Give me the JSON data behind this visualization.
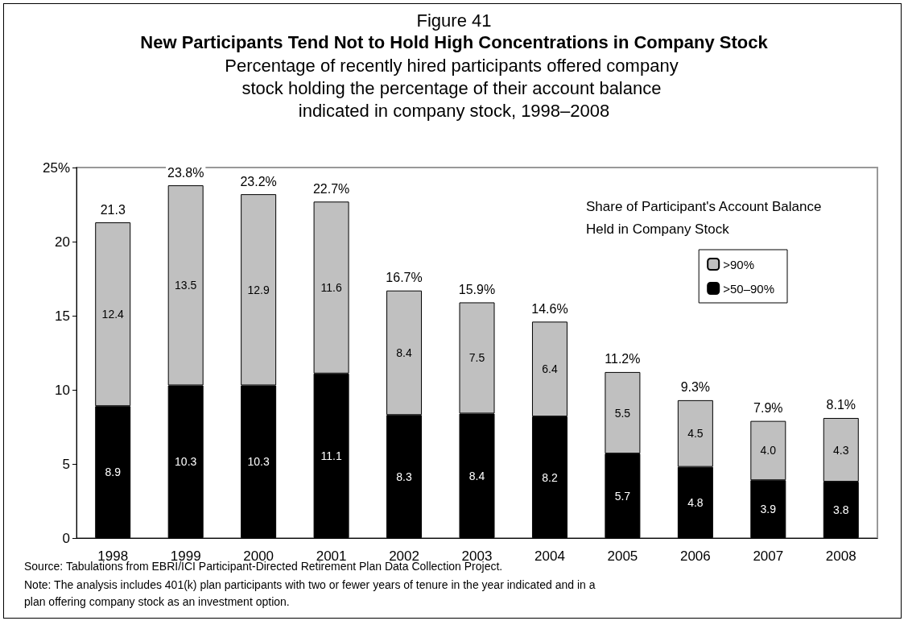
{
  "chart_data": {
    "type": "bar",
    "stacked": true,
    "title": "New Participants Tend Not to Hold High Concentrations in Company Stock",
    "subtitle": "Figure 41",
    "annotations": [
      "Percentage of recently hired participants offered company stock holding the percentage of their account balance indicated in company stock, 1998–2008",
      "Source: Tabulations from EBRI/ICI Participant-Directed Retirement Plan Data Collection Project.",
      "Note: The analysis includes 401(k) plan participants with two or fewer years of tenure in the year indicated and in a plan offering company stock as an investment option."
    ],
    "categories": [
      "1998",
      "1999",
      "2000",
      "2001",
      "2002",
      "2003",
      "2004",
      "2005",
      "2006",
      "2007",
      "2008"
    ],
    "series": [
      {
        "name": ">50–90%",
        "color": "#000000",
        "values": [
          8.9,
          10.3,
          10.3,
          11.1,
          8.3,
          8.4,
          8.2,
          5.7,
          4.8,
          3.9,
          3.8
        ],
        "value_labels": [
          "8.9",
          "10.3",
          "10.3",
          "11.1",
          "8.3",
          "8.4",
          "8.2",
          "5.7",
          "4.8",
          "3.9",
          "3.8"
        ]
      },
      {
        "name": ">90%",
        "color": "#c0c0c0",
        "values": [
          12.4,
          13.5,
          12.9,
          11.6,
          8.4,
          7.5,
          6.4,
          5.5,
          4.5,
          4.0,
          4.3
        ],
        "value_labels": [
          "12.4",
          "13.5",
          "12.9",
          "11.6",
          "8.4",
          "7.5",
          "6.4",
          "5.5",
          "4.5",
          "4.0",
          "4.3"
        ]
      }
    ],
    "totals": [
      "21.3",
      "23.8%",
      "23.2%",
      "22.7%",
      "16.7%",
      "15.9%",
      "14.6%",
      "11.2%",
      "9.3%",
      "7.9%",
      "8.1%"
    ],
    "legend_title": "Share of Participant's Account Balance Held in Company Stock",
    "legend": "top right",
    "grid": false,
    "ylim": [
      0,
      25
    ],
    "yticks": [
      0,
      5,
      10,
      15,
      20,
      {
        "value": 25,
        "label": "25%"
      }
    ]
  }
}
